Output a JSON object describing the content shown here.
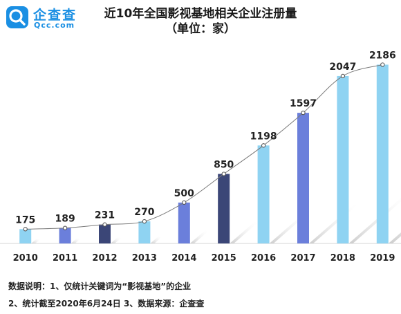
{
  "brand": {
    "name": "企查查",
    "domain": "Qcc.com",
    "logo_color": "#1a8fe3"
  },
  "title": {
    "line1": "近10年全国影视基地相关企业注册量",
    "line2": "（单位：家）"
  },
  "chart_data": {
    "type": "bar",
    "title": "近10年全国影视基地相关企业注册量",
    "subtitle": "（单位：家）",
    "categories": [
      "2010",
      "2011",
      "2012",
      "2013",
      "2014",
      "2015",
      "2016",
      "2017",
      "2018",
      "2019"
    ],
    "values": [
      175,
      189,
      231,
      270,
      500,
      850,
      1198,
      1597,
      2047,
      2186
    ],
    "bar_colors": [
      "#8fd3f2",
      "#6b7fdb",
      "#3b4677",
      "#8fd3f2",
      "#6b7fdb",
      "#3b4677",
      "#8fd3f2",
      "#6b7fdb",
      "#8fd3f2",
      "#8fd3f2"
    ],
    "trend_line": true,
    "data_labels": true,
    "xlabel": "",
    "ylabel": "",
    "ylim": [
      0,
      2300
    ],
    "grid": false,
    "legend": "none"
  },
  "footer": {
    "note1": "数据说明：1、仅统计关键词为“影视基地”的企业",
    "note2": "2、统计截至2020年6月24日    3、数据来源：企查查"
  }
}
